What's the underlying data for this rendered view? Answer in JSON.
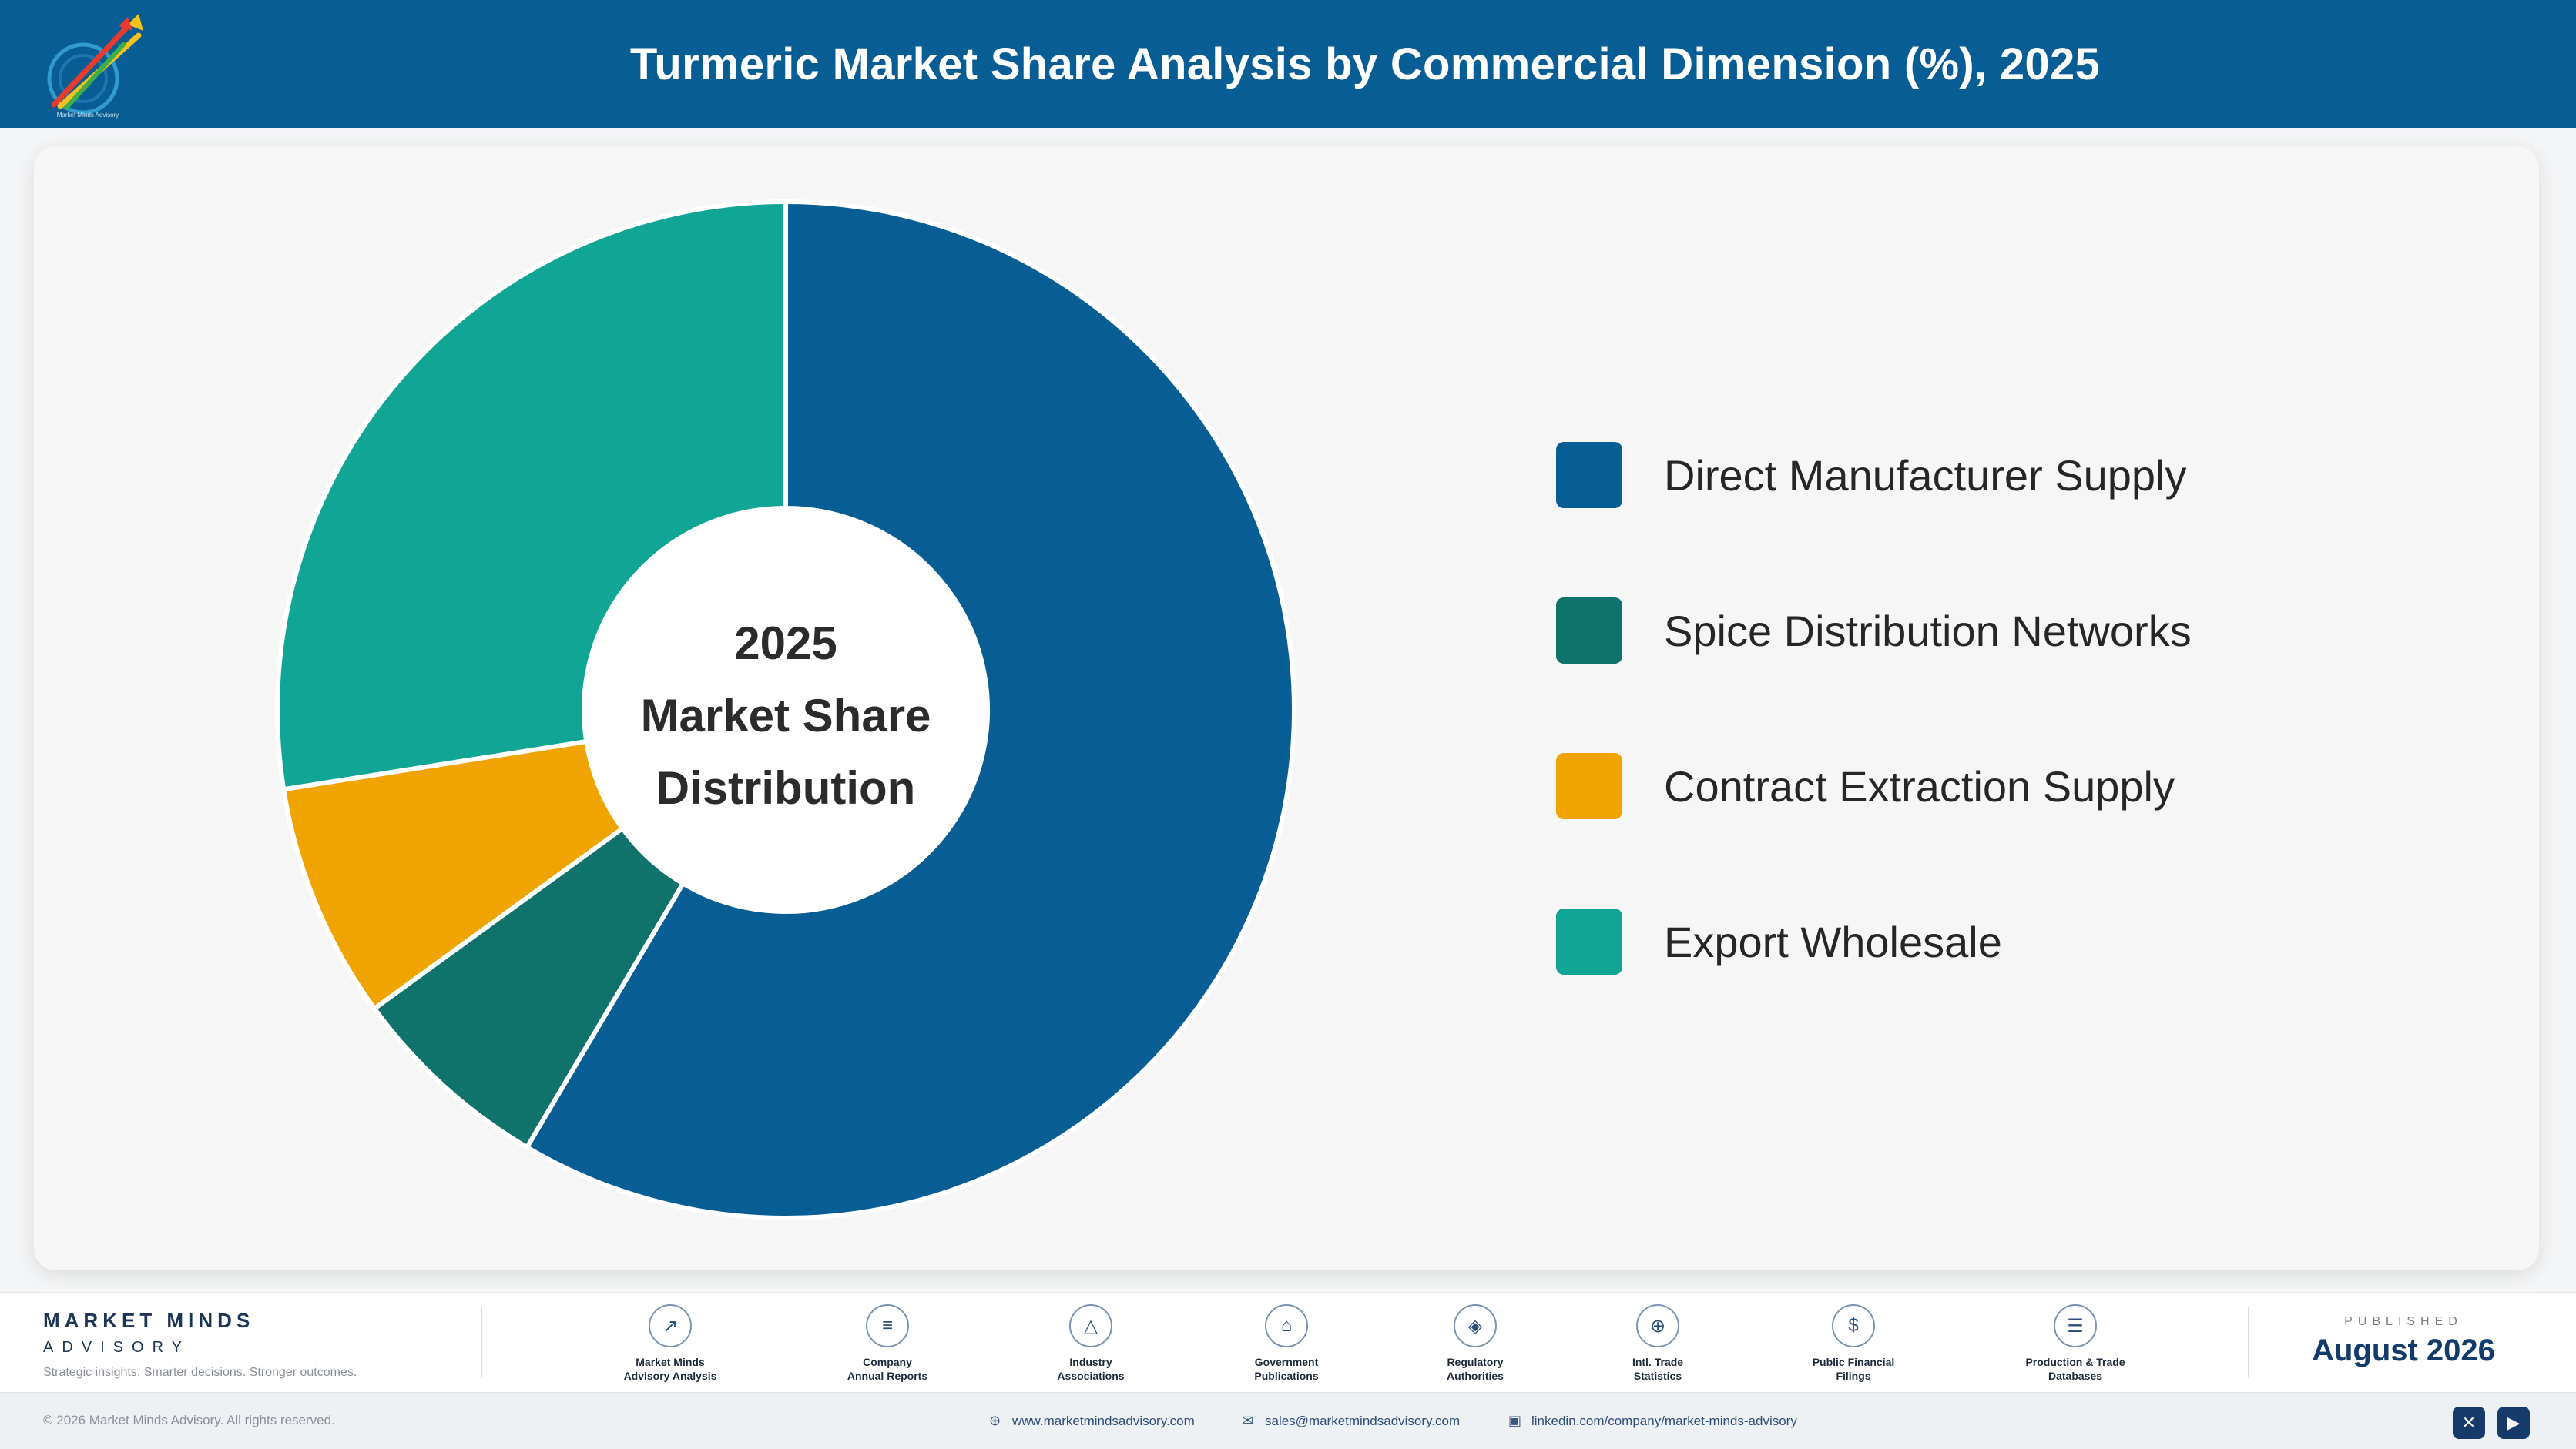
{
  "header": {
    "title": "Turmeric Market Share Analysis by Commercial Dimension (%), 2025"
  },
  "logo": {
    "caption": "Market Minds Advisory"
  },
  "center": {
    "line1": "2025",
    "line2": "Market Share",
    "line3": "Distribution"
  },
  "colors": {
    "header_bg": "#085e94",
    "direct_manufacturer": "#085e94",
    "spice_distribution": "#0f736b",
    "contract_extraction": "#f0a402",
    "export_wholesale": "#11a595"
  },
  "chart_data": {
    "type": "pie",
    "title": "Turmeric Market Share Analysis by Commercial Dimension (%), 2025",
    "donut": true,
    "categories": [
      "Direct Manufacturer Supply",
      "Spice Distribution Networks",
      "Contract Extraction Supply",
      "Export Wholesale"
    ],
    "values": [
      58.5,
      6.5,
      7.5,
      27.5
    ],
    "unit": "%",
    "legend_position": "right",
    "start_angle": "12 o'clock, clockwise",
    "data_labels": false
  },
  "footer": {
    "brand_name": "MARKET MINDS",
    "brand_sub": "ADVISORY",
    "tagline": "Strategic insights. Smarter decisions. Stronger outcomes.",
    "sources": [
      {
        "label": "Market Minds\nAdvisory Analysis",
        "icon": "trend-chart-icon",
        "glyph": "↗"
      },
      {
        "label": "Company\nAnnual Reports",
        "icon": "document-icon",
        "glyph": "≡"
      },
      {
        "label": "Industry\nAssociations",
        "icon": "network-icon",
        "glyph": "△"
      },
      {
        "label": "Government\nPublications",
        "icon": "government-building-icon",
        "glyph": "⌂"
      },
      {
        "label": "Regulatory\nAuthorities",
        "icon": "shield-icon",
        "glyph": "◈"
      },
      {
        "label": "Intl. Trade\nStatistics",
        "icon": "globe-icon",
        "glyph": "⊕"
      },
      {
        "label": "Public Financial\nFilings",
        "icon": "coin-icon",
        "glyph": "$"
      },
      {
        "label": "Production & Trade\nDatabases",
        "icon": "database-icon",
        "glyph": "☰"
      }
    ],
    "published_label": "PUBLISHED",
    "published_date": "August 2026",
    "copyright": "© 2026 Market Minds Advisory. All rights reserved.",
    "website": "www.marketmindsadvisory.com",
    "email": "sales@marketmindsadvisory.com",
    "linkedin": "linkedin.com/company/market-minds-advisory",
    "social": [
      {
        "icon": "x-twitter-icon",
        "glyph": "✕"
      },
      {
        "icon": "youtube-icon",
        "glyph": "▶"
      }
    ]
  }
}
